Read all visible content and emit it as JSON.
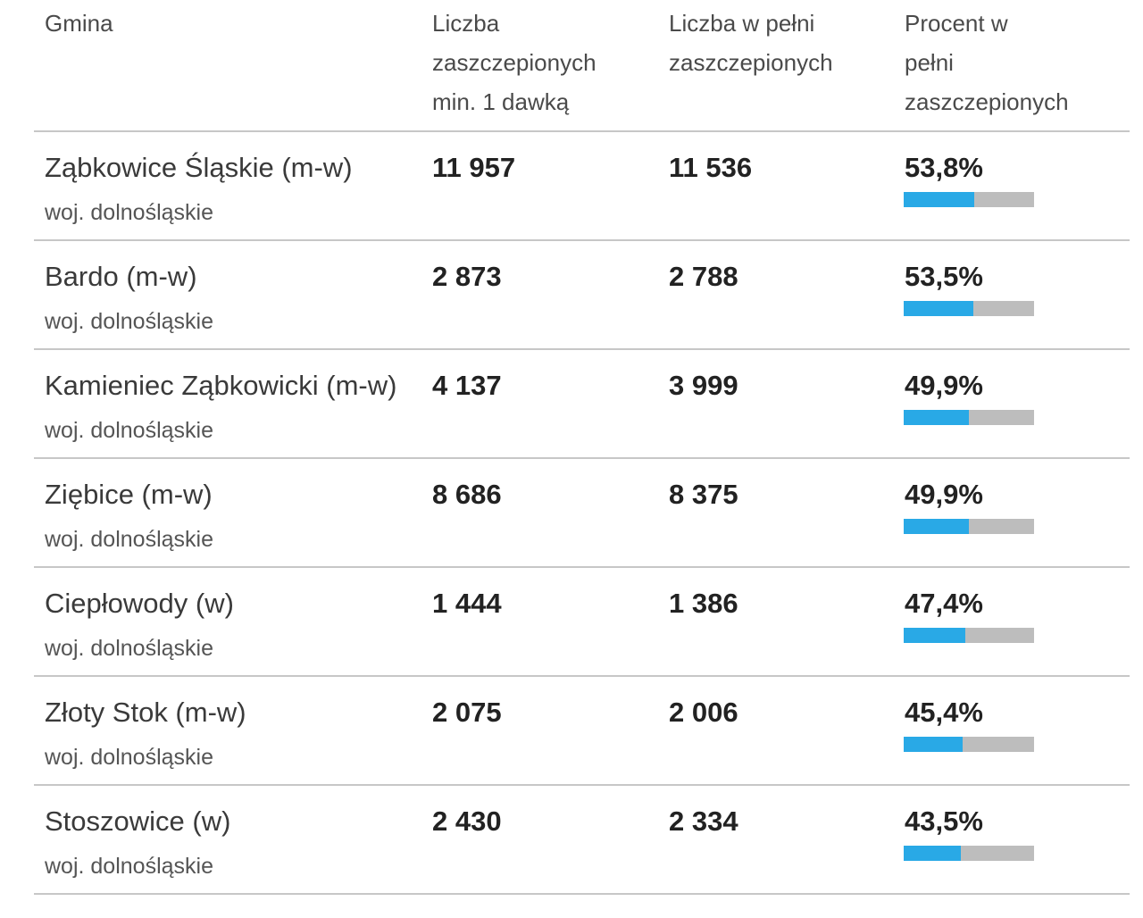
{
  "header": {
    "gmina": "Gmina",
    "min1": [
      "Liczba",
      "zaszczepionych",
      "min. 1 dawką"
    ],
    "full": [
      "Liczba w pełni",
      "zaszczepionych"
    ],
    "pct": [
      "Procent w",
      "pełni",
      "zaszczepionych"
    ]
  },
  "colors": {
    "bar_fill": "#29a9e6",
    "bar_track": "#bdbdbd",
    "divider": "#c7c7c7"
  },
  "rows": [
    {
      "name": "Ząbkowice Śląskie (m-w)",
      "region": "woj. dolnośląskie",
      "min1": "11 957",
      "full": "11 536",
      "pct": "53,8%",
      "pct_value": 53.8
    },
    {
      "name": "Bardo (m-w)",
      "region": "woj. dolnośląskie",
      "min1": "2 873",
      "full": "2 788",
      "pct": "53,5%",
      "pct_value": 53.5
    },
    {
      "name": "Kamieniec Ząbkowicki (m-w)",
      "region": "woj. dolnośląskie",
      "min1": "4 137",
      "full": "3 999",
      "pct": "49,9%",
      "pct_value": 49.9
    },
    {
      "name": "Ziębice (m-w)",
      "region": "woj. dolnośląskie",
      "min1": "8 686",
      "full": "8 375",
      "pct": "49,9%",
      "pct_value": 49.9
    },
    {
      "name": "Ciepłowody (w)",
      "region": "woj. dolnośląskie",
      "min1": "1 444",
      "full": "1 386",
      "pct": "47,4%",
      "pct_value": 47.4
    },
    {
      "name": "Złoty Stok (m-w)",
      "region": "woj. dolnośląskie",
      "min1": "2 075",
      "full": "2 006",
      "pct": "45,4%",
      "pct_value": 45.4
    },
    {
      "name": "Stoszowice (w)",
      "region": "woj. dolnośląskie",
      "min1": "2 430",
      "full": "2 334",
      "pct": "43,5%",
      "pct_value": 43.5
    }
  ]
}
